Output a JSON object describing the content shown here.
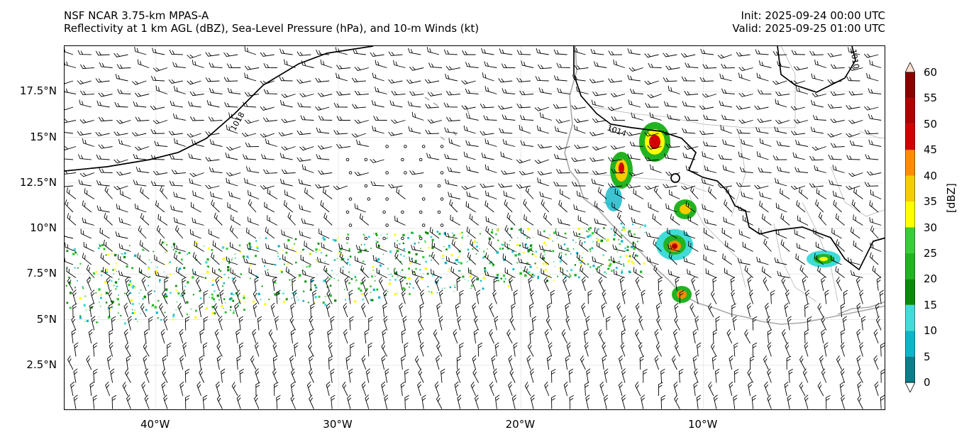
{
  "title": {
    "left_line1": "NSF NCAR 3.75-km MPAS-A",
    "left_line2": "Reflectivity at 1 km AGL (dBZ), Sea-Level Pressure (hPa), and 10-m Winds (kt)",
    "right_line1": "Init: 2025-09-24 00:00 UTC",
    "right_line2": "Valid: 2025-09-25 01:00 UTC"
  },
  "map": {
    "lon_labels": [
      "40°W",
      "30°W",
      "20°W",
      "10°W"
    ],
    "lon_values": [
      -40,
      -30,
      -20,
      -10
    ],
    "lat_labels": [
      "17.5°N",
      "15°N",
      "12.5°N",
      "10°N",
      "7.5°N",
      "5°N",
      "2.5°N"
    ],
    "lat_values": [
      17.5,
      15,
      12.5,
      10,
      7.5,
      5,
      2.5
    ],
    "lon_range": [
      -45,
      0
    ],
    "lat_range": [
      0,
      20
    ],
    "isobar_labels": [
      "1018",
      "1014",
      "1010"
    ]
  },
  "colorbar": {
    "label": "[dBZ]",
    "ticks": [
      "0",
      "5",
      "10",
      "15",
      "20",
      "25",
      "30",
      "35",
      "40",
      "45",
      "50",
      "55",
      "60"
    ],
    "colors": [
      "#ffffff",
      "#0b7e8a",
      "#0cb5c8",
      "#41dbd9",
      "#0a8a0a",
      "#22b322",
      "#39cc39",
      "#ffff00",
      "#f5cc00",
      "#ff8c00",
      "#d20000",
      "#b00000",
      "#8b0000",
      "#ff00ff",
      "#ffe0d0"
    ]
  }
}
